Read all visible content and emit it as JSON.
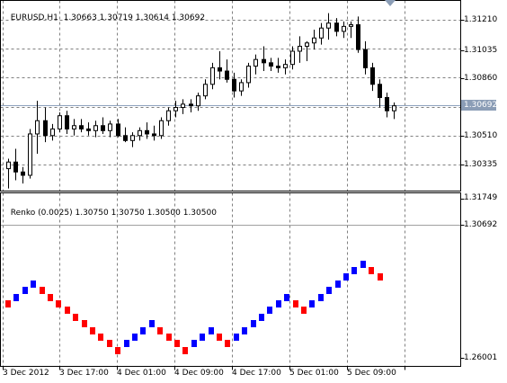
{
  "main_chart": {
    "title": "EURUSD,H1",
    "ohlc_readout": "1.30663 1.30719 1.30614 1.30692",
    "price_ticks": [
      "1.31210",
      "1.31035",
      "1.30860",
      "1.30510",
      "1.30335"
    ],
    "current_price": "1.30692",
    "candles": [
      [
        1.3031,
        1.3037,
        1.3019,
        1.3035
      ],
      [
        1.3035,
        1.3043,
        1.3024,
        1.3029
      ],
      [
        1.3029,
        1.3032,
        1.3022,
        1.3027
      ],
      [
        1.3027,
        1.3055,
        1.3025,
        1.3052
      ],
      [
        1.3052,
        1.3072,
        1.304,
        1.306
      ],
      [
        1.306,
        1.3068,
        1.3047,
        1.3051
      ],
      [
        1.3051,
        1.3058,
        1.3048,
        1.3055
      ],
      [
        1.3055,
        1.3065,
        1.3053,
        1.3063
      ],
      [
        1.3063,
        1.3066,
        1.3052,
        1.3055
      ],
      [
        1.3055,
        1.3061,
        1.3051,
        1.3057
      ],
      [
        1.3057,
        1.3061,
        1.3053,
        1.3055
      ],
      [
        1.3055,
        1.3059,
        1.3051,
        1.3054
      ],
      [
        1.3054,
        1.306,
        1.305,
        1.3057
      ],
      [
        1.3057,
        1.3062,
        1.3052,
        1.3054
      ],
      [
        1.3054,
        1.306,
        1.305,
        1.3058
      ],
      [
        1.3058,
        1.3061,
        1.305,
        1.3051
      ],
      [
        1.3051,
        1.3056,
        1.3047,
        1.3048
      ],
      [
        1.3048,
        1.3053,
        1.3044,
        1.3051
      ],
      [
        1.3051,
        1.3056,
        1.3048,
        1.3054
      ],
      [
        1.3054,
        1.3059,
        1.3049,
        1.3052
      ],
      [
        1.3052,
        1.3057,
        1.3048,
        1.3051
      ],
      [
        1.3051,
        1.3062,
        1.3049,
        1.306
      ],
      [
        1.306,
        1.3068,
        1.3057,
        1.3066
      ],
      [
        1.3066,
        1.3072,
        1.3062,
        1.3068
      ],
      [
        1.3068,
        1.3073,
        1.3064,
        1.307
      ],
      [
        1.307,
        1.3073,
        1.3065,
        1.3069
      ],
      [
        1.3069,
        1.3077,
        1.3066,
        1.3075
      ],
      [
        1.3075,
        1.3085,
        1.3073,
        1.3082
      ],
      [
        1.3082,
        1.3095,
        1.3079,
        1.3092
      ],
      [
        1.3092,
        1.3102,
        1.3085,
        1.309
      ],
      [
        1.309,
        1.3097,
        1.3083,
        1.3085
      ],
      [
        1.3085,
        1.3089,
        1.3074,
        1.3078
      ],
      [
        1.3078,
        1.3085,
        1.3075,
        1.3083
      ],
      [
        1.3083,
        1.3095,
        1.308,
        1.3093
      ],
      [
        1.3093,
        1.31,
        1.3088,
        1.3097
      ],
      [
        1.3097,
        1.3105,
        1.309,
        1.3095
      ],
      [
        1.3095,
        1.3098,
        1.309,
        1.3093
      ],
      [
        1.3093,
        1.3098,
        1.3089,
        1.3092
      ],
      [
        1.3092,
        1.3097,
        1.3088,
        1.3094
      ],
      [
        1.3094,
        1.3105,
        1.3091,
        1.3102
      ],
      [
        1.3102,
        1.3111,
        1.3095,
        1.3105
      ],
      [
        1.3105,
        1.3108,
        1.3096,
        1.3107
      ],
      [
        1.3107,
        1.3115,
        1.3103,
        1.311
      ],
      [
        1.311,
        1.3119,
        1.3106,
        1.3116
      ],
      [
        1.3116,
        1.3125,
        1.3109,
        1.3119
      ],
      [
        1.3119,
        1.3122,
        1.3111,
        1.3114
      ],
      [
        1.3114,
        1.312,
        1.311,
        1.3117
      ],
      [
        1.3117,
        1.312,
        1.311,
        1.3118
      ],
      [
        1.3118,
        1.3123,
        1.3101,
        1.3103
      ],
      [
        1.3103,
        1.3108,
        1.3088,
        1.3092
      ],
      [
        1.3092,
        1.3095,
        1.3078,
        1.3082
      ],
      [
        1.3082,
        1.3085,
        1.3068,
        1.3074
      ],
      [
        1.3074,
        1.3077,
        1.3062,
        1.3066
      ],
      [
        1.3066,
        1.3071,
        1.3061,
        1.3069
      ]
    ]
  },
  "renko": {
    "title": "Renko (0.0025)",
    "ohlc_readout": "1.30750 1.30750 1.30500 1.30500",
    "price_ticks": [
      "1.31749",
      "1.26001"
    ],
    "current_price": "1.30692",
    "bricks": [
      -1,
      1,
      1,
      1,
      -1,
      -1,
      -1,
      -1,
      -1,
      -1,
      -1,
      -1,
      -1,
      -1,
      1,
      1,
      1,
      1,
      -1,
      -1,
      -1,
      -1,
      1,
      1,
      1,
      -1,
      -1,
      1,
      1,
      1,
      1,
      1,
      1,
      1,
      -1,
      -1,
      1,
      1,
      1,
      1,
      1,
      1,
      1,
      -1,
      -1
    ],
    "colors": {
      "up": "#0000ff",
      "down": "#ff0000"
    }
  },
  "time_axis": [
    "3 Dec 2012",
    "3 Dec 17:00",
    "4 Dec 01:00",
    "4 Dec 09:00",
    "4 Dec 17:00",
    "5 Dec 01:00",
    "5 Dec 09:00"
  ],
  "colors": {
    "grid": "#808080",
    "frame": "#000000",
    "candle_up": "#ffffff",
    "candle_down": "#000000",
    "bid_line": "#8ea2bd",
    "price_badge": "#8b9db6"
  }
}
